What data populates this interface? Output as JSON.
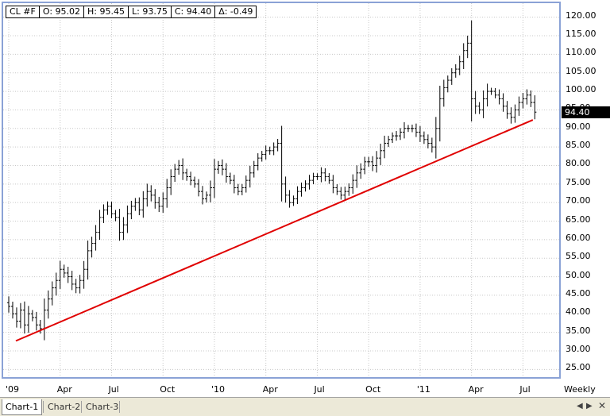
{
  "ohlc": {
    "symbol": "CL #F",
    "open": "O: 95.02",
    "high": "H: 95.45",
    "low": "L: 93.75",
    "close": "C: 94.40",
    "change": "Δ: -0.49"
  },
  "last_price": "94.40",
  "period": "Weekly",
  "tabs": [
    "Chart-1",
    "Chart-2",
    "Chart-3"
  ],
  "active_tab": "Chart-1",
  "nav": {
    "prev_icon": "triangle-left-icon",
    "next_icon": "triangle-right-icon",
    "close_icon": "close-icon"
  },
  "colors": {
    "frame": "#8aa2d6",
    "trendline": "#e00000",
    "bars": "#000000",
    "grid": "#c8c8c8"
  },
  "chart_data": {
    "type": "ohlc",
    "period": "Weekly",
    "ylim": [
      22.5,
      122.5
    ],
    "y_ticks": [
      "25.00",
      "30.00",
      "35.00",
      "40.00",
      "45.00",
      "50.00",
      "55.00",
      "60.00",
      "65.00",
      "70.00",
      "75.00",
      "80.00",
      "85.00",
      "90.00",
      "95.00",
      "100.00",
      "105.00",
      "110.00",
      "115.00",
      "120.00"
    ],
    "x_tick_labels": [
      "'09",
      "Apr",
      "Jul",
      "Oct",
      "'10",
      "Apr",
      "Jul",
      "Oct",
      "'11",
      "Apr",
      "Jul"
    ],
    "x_tick_weeks": [
      0,
      13,
      26,
      39,
      52,
      65,
      78,
      91,
      104,
      117,
      130
    ],
    "weekly_close": [
      42,
      40,
      38,
      41,
      37,
      40,
      39,
      37,
      36,
      41,
      44,
      47,
      49,
      52,
      51,
      50,
      48,
      47,
      49,
      52,
      57,
      59,
      62,
      66,
      68,
      69,
      67,
      66,
      62,
      64,
      67,
      69,
      70,
      68,
      71,
      73,
      72,
      70,
      69,
      71,
      74,
      77,
      79,
      80,
      78,
      77,
      76,
      75,
      73,
      71,
      72,
      74,
      79,
      80,
      79,
      77,
      76,
      74,
      73,
      74,
      76,
      78,
      80,
      82,
      83,
      84,
      84,
      85,
      86,
      75,
      72,
      70,
      71,
      73,
      74,
      75,
      76,
      77,
      77,
      78,
      77,
      76,
      74,
      73,
      72,
      73,
      74,
      76,
      78,
      79,
      81,
      81,
      80,
      82,
      84,
      86,
      87,
      88,
      88,
      89,
      90,
      90,
      90,
      89,
      88,
      87,
      86,
      85,
      90,
      98,
      101,
      103,
      105,
      106,
      108,
      111,
      113,
      98,
      96,
      95,
      98,
      100,
      100,
      99,
      98,
      96,
      94,
      93,
      95,
      97,
      98,
      99,
      97,
      94.4
    ],
    "trendline": {
      "from": [
        1.8,
        32.7
      ],
      "to": [
        132.5,
        92.3
      ]
    }
  }
}
